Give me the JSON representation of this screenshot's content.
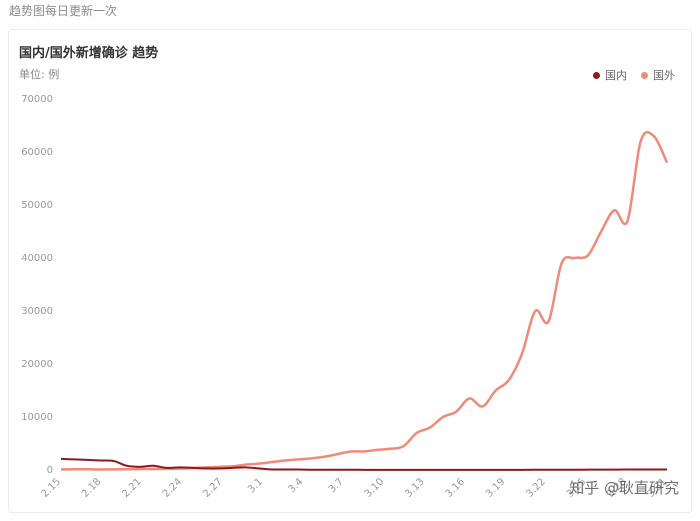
{
  "header": {
    "note": "趋势图每日更新一次"
  },
  "chart_data": {
    "type": "line",
    "title": "国内/国外新增确诊 趋势",
    "unit_label": "单位: 例",
    "y_ticks": [
      0,
      10000,
      20000,
      30000,
      40000,
      50000,
      60000,
      70000
    ],
    "ylim": [
      0,
      70000
    ],
    "x_labels": [
      "2.15",
      "2.18",
      "2.21",
      "2.24",
      "2.27",
      "3.1",
      "3.4",
      "3.7",
      "3.10",
      "3.13",
      "3.16",
      "3.19",
      "3.22",
      "3.25",
      "3.28",
      "3.31"
    ],
    "legend_position": "top-right",
    "grid": false,
    "series": [
      {
        "name": "国内",
        "color": "#8b1a1a",
        "values": [
          2100,
          2000,
          1900,
          1800,
          1700,
          800,
          600,
          800,
          400,
          500,
          400,
          300,
          300,
          400,
          500,
          300,
          100,
          100,
          100,
          50,
          40,
          50,
          40,
          30,
          25,
          20,
          20,
          20,
          20,
          20,
          20,
          20,
          20,
          20,
          20,
          30,
          40,
          50,
          40,
          50,
          60,
          70,
          80,
          90,
          100,
          100,
          100
        ]
      },
      {
        "name": "国外",
        "color": "#ee8a78",
        "values": [
          100,
          150,
          150,
          100,
          120,
          150,
          200,
          200,
          250,
          300,
          400,
          500,
          600,
          700,
          1000,
          1200,
          1500,
          1800,
          2000,
          2200,
          2500,
          3000,
          3500,
          3500,
          3800,
          4000,
          4500,
          7000,
          8000,
          10000,
          11000,
          13500,
          12000,
          15000,
          17000,
          22000,
          30000,
          28000,
          39000,
          40000,
          40500,
          45000,
          49000,
          47000,
          62000,
          63000,
          58000
        ]
      }
    ]
  },
  "watermark": "知乎 @耿直研究"
}
